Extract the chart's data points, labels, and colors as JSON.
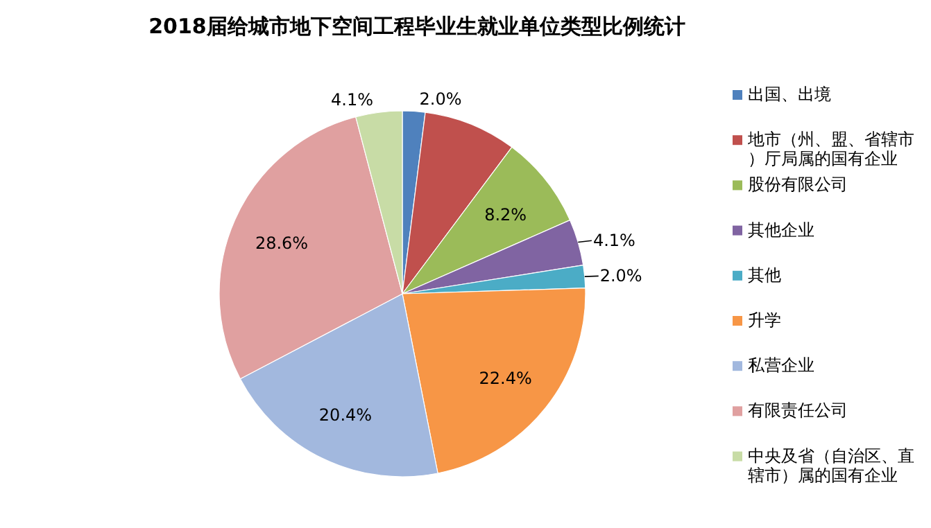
{
  "chart_data": {
    "type": "pie",
    "title": "2018届给城市地下空间工程毕业生就业单位类型比例统计",
    "categories": [
      "出国、出境",
      "地市（州、盟、省辖市）厅局属的国有企业",
      "股份有限公司",
      "其他企业",
      "其他",
      "升学",
      "私营企业",
      "有限责任公司",
      "中央及省（自治区、直辖市）属的国有企业"
    ],
    "values": [
      2.0,
      8.2,
      8.2,
      4.1,
      2.0,
      22.4,
      20.4,
      28.6,
      4.1
    ],
    "value_labels": [
      "2.0%",
      null,
      "8.2%",
      "4.1%",
      "2.0%",
      "22.4%",
      "20.4%",
      "28.6%",
      "4.1%"
    ],
    "colors": [
      "#4f81bd",
      "#c0504d",
      "#9bbb59",
      "#8064a2",
      "#4bacc6",
      "#f79646",
      "#a2b8de",
      "#e0a0a0",
      "#c8dca6"
    ],
    "legend": "right"
  }
}
